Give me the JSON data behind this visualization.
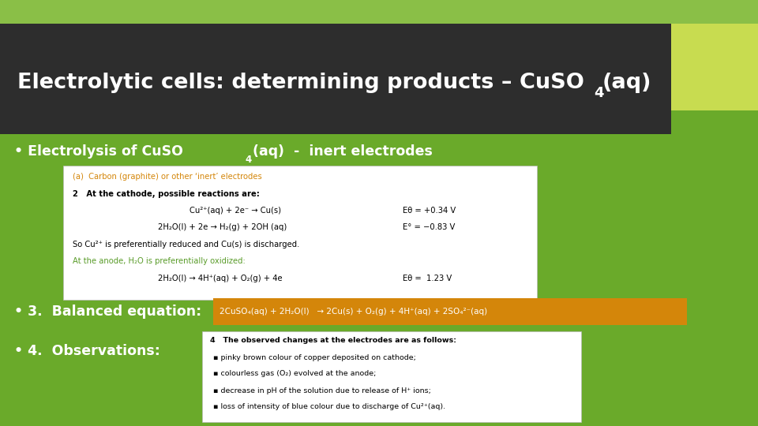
{
  "bg_body_color": "#6aaa2a",
  "bg_top_color": "#8abf47",
  "title_bar_color": "#2d2d2d",
  "accent_color": "#c8dc50",
  "white": "#ffffff",
  "orange_color": "#d4860a",
  "green_text_color": "#5a9c2a",
  "black": "#000000",
  "title_text": "Electrolytic cells: determining products – CuSO",
  "title_4": "4",
  "title_aq": "(aq)",
  "b1_text": "• Electrolysis of CuSO",
  "b1_4": "4",
  "b1_rest": "(aq)  -  inert electrodes",
  "b3_label": "• 3.  Balanced equation:",
  "b4_label": "• 4.  Observations:",
  "box1_a": "(a)  Carbon (graphite) or other ‘inert’ electrodes",
  "box1_b": "2   At the cathode, possible reactions are:",
  "box1_eq1a": "Cu²⁺(aq) + 2e⁻ → Cu(s)",
  "box1_eq1b": "Eθ = +0.34 V",
  "box1_eq2a": "2H₂O(l) + 2e → H₂(g) + 2OH (aq)",
  "box1_eq2b": "E° = −0.83 V",
  "box1_c": "So Cu²⁺ is preferentially reduced and Cu(s) is discharged.",
  "box1_d": "At the anode, H₂O is preferentially oxidized:",
  "box1_eq3a": "2H₂O(l) → 4H⁺(aq) + O₂(g) + 4e",
  "box1_eq3b": "Eθ =  1.23 V",
  "orange_eq": "2CuSO₄(aq) + 2H₂O(l)   → 2Cu(s) + O₂(g) + 4H⁺(aq) + 2SO₄²⁻(aq)",
  "obs1": "4   The observed changes at the electrodes are as follows:",
  "obs2": "▪ pinky brown colour of copper deposited on cathode;",
  "obs3": "▪ colourless gas (O₂) evolved at the anode;",
  "obs4": "▪ decrease in pH of the solution due to release of H⁺ ions;",
  "obs5": "▪ loss of intensity of blue colour due to discharge of Cu²⁺(aq)."
}
